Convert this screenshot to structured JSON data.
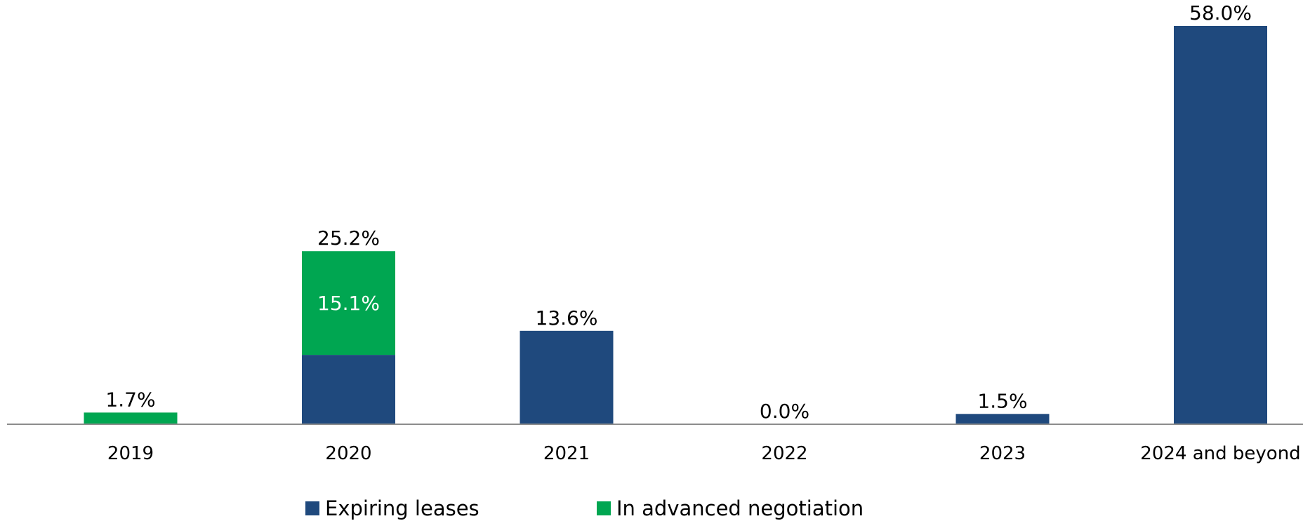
{
  "chart_data": {
    "type": "bar",
    "stacked": true,
    "categories": [
      "2019",
      "2020",
      "2021",
      "2022",
      "2023",
      "2024 and beyond"
    ],
    "series": [
      {
        "name": "Expiring leases",
        "color": "#1f497d",
        "values": [
          0.0,
          10.1,
          13.6,
          0.0,
          1.5,
          58.0
        ]
      },
      {
        "name": "In advanced negotiation",
        "color": "#00a651",
        "values": [
          1.7,
          15.1,
          0.0,
          0.0,
          0.0,
          0.0
        ]
      }
    ],
    "totals": [
      "1.7%",
      "25.2%",
      "13.6%",
      "0.0%",
      "1.5%",
      "58.0%"
    ],
    "segment_labels": [
      {
        "category": "2020",
        "series": "In advanced negotiation",
        "label": "15.1%"
      }
    ],
    "ylim": [
      0,
      58.0
    ],
    "grid": false,
    "legend_position": "bottom-center"
  },
  "legend": {
    "items": [
      {
        "label": "Expiring leases",
        "color": "#1f497d"
      },
      {
        "label": "In advanced negotiation",
        "color": "#00a651"
      }
    ]
  }
}
